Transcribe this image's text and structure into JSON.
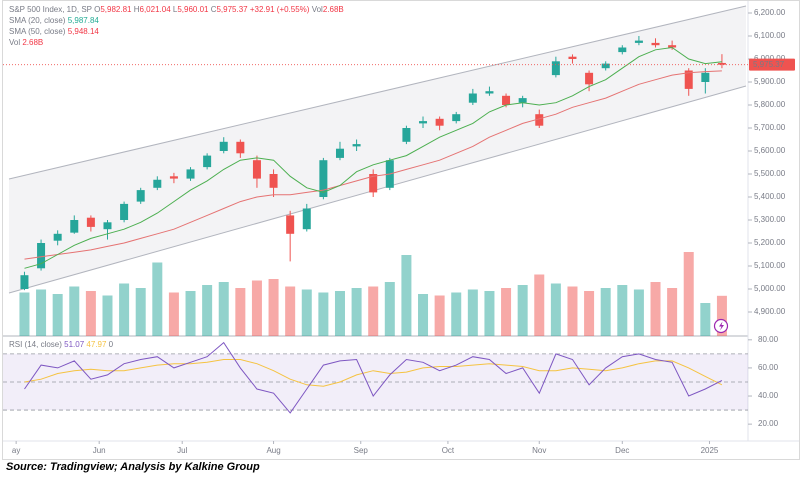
{
  "chart_data": {
    "type": "candlestick",
    "legend": {
      "title": "S&P 500 Index, 1D, SP",
      "open_label": "O",
      "open": "5,982.81",
      "high_label": "H",
      "high": "6,021.04",
      "low_label": "L",
      "low": "5,960.01",
      "close_label": "C",
      "close": "5,975.37",
      "change": "+32.91 (+0.55%)",
      "volume_label": "Vol",
      "volume": "2.68B"
    },
    "sma20_legend": {
      "name": "SMA (20, close)",
      "value": "5,987.84"
    },
    "sma50_legend": {
      "name": "SMA (50, close)",
      "value": "5,948.14"
    },
    "vol_legend": {
      "name": "Vol",
      "value": "2.68B"
    },
    "rsi_legend": {
      "name": "RSI (14, close)",
      "rsi": "51.07",
      "ma": "47.97",
      "extra": "0"
    },
    "source": "Source: Tradingview; Analysis by Kalkine Group",
    "x": [
      3,
      7,
      11,
      15,
      19,
      23,
      27,
      31,
      35,
      39,
      43,
      47,
      51,
      55,
      59,
      63,
      67,
      71,
      75,
      79,
      83,
      87,
      91,
      95,
      99,
      103,
      107,
      111,
      115,
      119,
      123,
      127,
      131,
      135,
      139,
      143,
      147,
      151,
      155,
      159,
      163,
      167,
      171
    ],
    "open": [
      5000,
      5090,
      5210,
      5245,
      5310,
      5260,
      5300,
      5380,
      5440,
      5490,
      5480,
      5530,
      5600,
      5640,
      5560,
      5500,
      5320,
      5260,
      5400,
      5570,
      5620,
      5500,
      5440,
      5640,
      5720,
      5740,
      5730,
      5810,
      5850,
      5840,
      5810,
      5760,
      5930,
      6010,
      5940,
      5960,
      6030,
      6070,
      6070,
      6060,
      5950,
      5900,
      5982.81
    ],
    "high": [
      5075,
      5215,
      5255,
      5320,
      5320,
      5300,
      5380,
      5440,
      5490,
      5505,
      5530,
      5590,
      5660,
      5650,
      5580,
      5520,
      5340,
      5370,
      5570,
      5640,
      5650,
      5520,
      5570,
      5710,
      5750,
      5750,
      5770,
      5870,
      5880,
      5850,
      5840,
      5780,
      6010,
      6020,
      5950,
      5990,
      6060,
      6100,
      6090,
      6080,
      5960,
      5960,
      6021.04
    ],
    "low": [
      4995,
      5080,
      5190,
      5240,
      5250,
      5215,
      5290,
      5370,
      5430,
      5460,
      5470,
      5520,
      5590,
      5570,
      5440,
      5400,
      5120,
      5250,
      5390,
      5560,
      5600,
      5400,
      5430,
      5630,
      5700,
      5690,
      5720,
      5800,
      5840,
      5790,
      5790,
      5700,
      5920,
      5980,
      5860,
      5950,
      6020,
      6060,
      6050,
      6040,
      5840,
      5850,
      5960.01
    ],
    "close": [
      5060,
      5200,
      5240,
      5300,
      5270,
      5290,
      5370,
      5430,
      5475,
      5480,
      5520,
      5580,
      5640,
      5590,
      5480,
      5440,
      5240,
      5350,
      5560,
      5610,
      5630,
      5420,
      5560,
      5700,
      5730,
      5710,
      5760,
      5850,
      5860,
      5800,
      5830,
      5710,
      5990,
      6000,
      5890,
      5980,
      6050,
      6080,
      6060,
      6050,
      5870,
      5940,
      5975.37
    ],
    "volume": [
      2.9,
      3.1,
      2.8,
      3.3,
      3.0,
      2.7,
      3.5,
      3.2,
      4.9,
      2.9,
      3.0,
      3.4,
      3.6,
      3.2,
      3.7,
      3.8,
      3.3,
      3.1,
      2.9,
      3.0,
      3.2,
      3.3,
      3.6,
      5.4,
      2.8,
      2.7,
      2.9,
      3.1,
      3.0,
      3.2,
      3.4,
      4.1,
      3.5,
      3.3,
      3.0,
      3.2,
      3.4,
      3.1,
      3.6,
      3.2,
      5.6,
      2.2,
      2.68
    ],
    "sma20": [
      5090,
      5110,
      5150,
      5190,
      5220,
      5240,
      5260,
      5290,
      5330,
      5380,
      5430,
      5470,
      5520,
      5560,
      5570,
      5560,
      5490,
      5440,
      5420,
      5450,
      5510,
      5540,
      5560,
      5580,
      5620,
      5660,
      5690,
      5720,
      5770,
      5800,
      5810,
      5800,
      5810,
      5840,
      5880,
      5910,
      5960,
      6010,
      6040,
      6050,
      6000,
      5980,
      5987.84
    ],
    "sma50": [
      5130,
      5140,
      5150,
      5160,
      5170,
      5185,
      5200,
      5220,
      5240,
      5260,
      5290,
      5320,
      5350,
      5380,
      5400,
      5410,
      5410,
      5420,
      5430,
      5450,
      5470,
      5490,
      5500,
      5520,
      5540,
      5560,
      5590,
      5620,
      5660,
      5690,
      5720,
      5740,
      5760,
      5790,
      5810,
      5830,
      5860,
      5890,
      5910,
      5930,
      5940,
      5945,
      5948.14
    ],
    "rsi": [
      45,
      62,
      60,
      65,
      52,
      55,
      63,
      66,
      68,
      60,
      64,
      68,
      78,
      60,
      45,
      42,
      28,
      45,
      62,
      65,
      66,
      40,
      55,
      66,
      64,
      58,
      62,
      68,
      66,
      56,
      60,
      42,
      70,
      66,
      48,
      60,
      68,
      70,
      66,
      64,
      40,
      45,
      51.07
    ],
    "rsi_ma": [
      50,
      52,
      56,
      58,
      59,
      58,
      58,
      60,
      62,
      63,
      63,
      64,
      66,
      66,
      63,
      58,
      52,
      48,
      47,
      50,
      55,
      58,
      56,
      57,
      60,
      61,
      61,
      62,
      63,
      62,
      61,
      58,
      58,
      60,
      59,
      58,
      60,
      63,
      65,
      65,
      60,
      54,
      47.97
    ],
    "last_price": {
      "value": 5975.37,
      "label": "5,975.37"
    },
    "xlim": [
      0,
      178
    ],
    "xticks": [
      {
        "value": 1,
        "label": "ay"
      },
      {
        "value": 21,
        "label": "Jun"
      },
      {
        "value": 41,
        "label": "Jul"
      },
      {
        "value": 63,
        "label": "Aug"
      },
      {
        "value": 84,
        "label": "Sep"
      },
      {
        "value": 105,
        "label": "Oct"
      },
      {
        "value": 127,
        "label": "Nov"
      },
      {
        "value": 147,
        "label": "Dec"
      },
      {
        "value": 168,
        "label": "2025"
      }
    ],
    "ylim": [
      4800,
      6250
    ],
    "yticks": [
      {
        "value": 4900,
        "label": "4,900.00"
      },
      {
        "value": 5000,
        "label": "5,000.00"
      },
      {
        "value": 5100,
        "label": "5,100.00"
      },
      {
        "value": 5200,
        "label": "5,200.00"
      },
      {
        "value": 5300,
        "label": "5,300.00"
      },
      {
        "value": 5400,
        "label": "5,400.00"
      },
      {
        "value": 5500,
        "label": "5,500.00"
      },
      {
        "value": 5600,
        "label": "5,600.00"
      },
      {
        "value": 5700,
        "label": "5,700.00"
      },
      {
        "value": 5800,
        "label": "5,800.00"
      },
      {
        "value": 5900,
        "label": "5,900.00"
      },
      {
        "value": 6000,
        "label": "6,000.00"
      },
      {
        "value": 6100,
        "label": "6,100.00"
      },
      {
        "value": 6200,
        "label": "6,200.00"
      }
    ],
    "rsi_ylim": [
      8,
      82
    ],
    "rsi_yticks": [
      {
        "value": 20,
        "label": "20.00"
      },
      {
        "value": 40,
        "label": "40.00"
      },
      {
        "value": 60,
        "label": "60.00"
      },
      {
        "value": 80,
        "label": "80.00"
      }
    ],
    "rsi_levels": [
      30,
      50,
      70
    ],
    "up_color": "#26a69a",
    "down_color": "#ef5350",
    "sma20_color": "#4caf50",
    "sma50_color": "#e57373",
    "rsi_color": "#7e57c2",
    "rsi_ma_color": "#f5c342"
  }
}
